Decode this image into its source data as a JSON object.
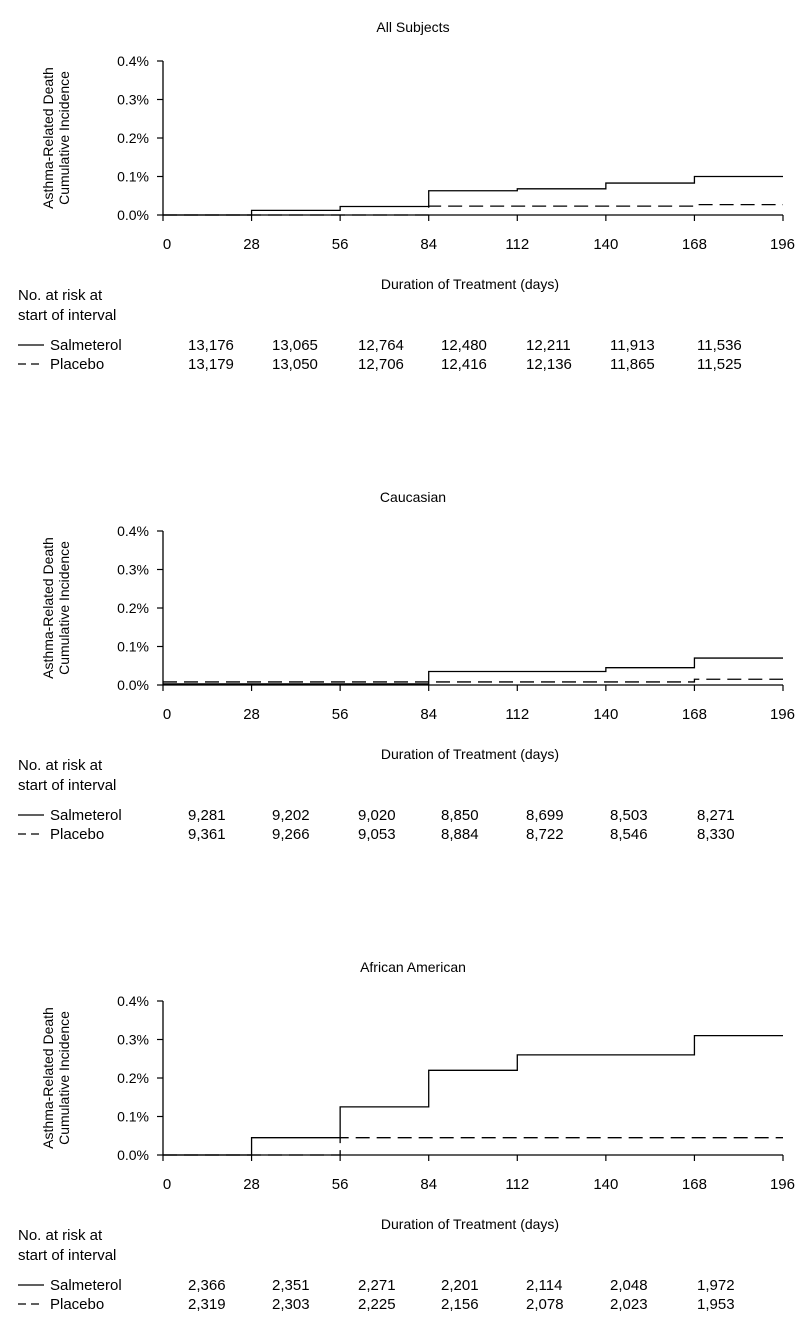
{
  "chart_data": [
    {
      "type": "line",
      "title": "All Subjects",
      "xlabel": "Duration of Treatment (days)",
      "ylabel": [
        "Asthma-Related Death",
        "Cumulative Incidence"
      ],
      "x_ticks": [
        "0",
        "28",
        "56",
        "84",
        "112",
        "140",
        "168",
        "196"
      ],
      "y_ticks": [
        "0.0%",
        "0.1%",
        "0.2%",
        "0.3%",
        "0.4%"
      ],
      "xlim": [
        0,
        196
      ],
      "ylim": [
        0,
        0.4
      ],
      "series": [
        {
          "name": "Salmeterol",
          "style": "solid",
          "x": [
            0,
            28,
            56,
            84,
            112,
            140,
            168,
            196
          ],
          "y": [
            0.0,
            0.012,
            0.022,
            0.063,
            0.068,
            0.083,
            0.1,
            0.1
          ]
        },
        {
          "name": "Placebo",
          "style": "dashed",
          "x": [
            0,
            28,
            56,
            84,
            112,
            140,
            168,
            196
          ],
          "y": [
            0.0,
            0.0,
            0.0,
            0.023,
            0.023,
            0.023,
            0.027,
            0.027
          ]
        }
      ],
      "risk_table": {
        "header": [
          "No. at risk at",
          "start of interval"
        ],
        "rows": [
          {
            "label": "Salmeterol",
            "style": "solid",
            "values": [
              "13,176",
              "13,065",
              "12,764",
              "12,480",
              "12,211",
              "11,913",
              "11,536"
            ]
          },
          {
            "label": "Placebo",
            "style": "dashed",
            "values": [
              "13,179",
              "13,050",
              "12,706",
              "12,416",
              "12,136",
              "11,865",
              "11,525"
            ]
          }
        ]
      }
    },
    {
      "type": "line",
      "title": "Caucasian",
      "xlabel": "Duration of Treatment (days)",
      "ylabel": [
        "Asthma-Related Death",
        "Cumulative Incidence"
      ],
      "x_ticks": [
        "0",
        "28",
        "56",
        "84",
        "112",
        "140",
        "168",
        "196"
      ],
      "y_ticks": [
        "0.0%",
        "0.1%",
        "0.2%",
        "0.3%",
        "0.4%"
      ],
      "xlim": [
        0,
        196
      ],
      "ylim": [
        0,
        0.4
      ],
      "series": [
        {
          "name": "Salmeterol",
          "style": "solid",
          "x": [
            0,
            28,
            56,
            84,
            112,
            140,
            168,
            196
          ],
          "y": [
            0.003,
            0.003,
            0.003,
            0.035,
            0.035,
            0.045,
            0.07,
            0.07
          ]
        },
        {
          "name": "Placebo",
          "style": "dashed",
          "x": [
            0,
            28,
            56,
            84,
            112,
            140,
            168,
            196
          ],
          "y": [
            0.008,
            0.008,
            0.008,
            0.008,
            0.008,
            0.008,
            0.015,
            0.015
          ]
        }
      ],
      "risk_table": {
        "header": [
          "No. at risk at",
          "start of interval"
        ],
        "rows": [
          {
            "label": "Salmeterol",
            "style": "solid",
            "values": [
              "9,281",
              "9,202",
              "9,020",
              "8,850",
              "8,699",
              "8,503",
              "8,271"
            ]
          },
          {
            "label": "Placebo",
            "style": "dashed",
            "values": [
              "9,361",
              "9,266",
              "9,053",
              "8,884",
              "8,722",
              "8,546",
              "8,330"
            ]
          }
        ]
      }
    },
    {
      "type": "line",
      "title": "African American",
      "xlabel": "Duration of Treatment (days)",
      "ylabel": [
        "Asthma-Related Death",
        "Cumulative Incidence"
      ],
      "x_ticks": [
        "0",
        "28",
        "56",
        "84",
        "112",
        "140",
        "168",
        "196"
      ],
      "y_ticks": [
        "0.0%",
        "0.1%",
        "0.2%",
        "0.3%",
        "0.4%"
      ],
      "xlim": [
        0,
        196
      ],
      "ylim": [
        0,
        0.4
      ],
      "series": [
        {
          "name": "Salmeterol",
          "style": "solid",
          "x": [
            0,
            28,
            56,
            84,
            112,
            140,
            168,
            196
          ],
          "y": [
            0.0,
            0.045,
            0.125,
            0.22,
            0.26,
            0.26,
            0.31,
            0.31
          ]
        },
        {
          "name": "Placebo",
          "style": "dashed",
          "x": [
            0,
            28,
            56,
            84,
            112,
            140,
            168,
            196
          ],
          "y": [
            0.0,
            0.0,
            0.045,
            0.045,
            0.045,
            0.045,
            0.045,
            0.045
          ]
        }
      ],
      "risk_table": {
        "header": [
          "No. at risk at",
          "start of interval"
        ],
        "rows": [
          {
            "label": "Salmeterol",
            "style": "solid",
            "values": [
              "2,366",
              "2,351",
              "2,271",
              "2,201",
              "2,114",
              "2,048",
              "1,972"
            ]
          },
          {
            "label": "Placebo",
            "style": "dashed",
            "values": [
              "2,319",
              "2,303",
              "2,225",
              "2,156",
              "2,078",
              "2,023",
              "1,953"
            ]
          }
        ]
      }
    }
  ]
}
